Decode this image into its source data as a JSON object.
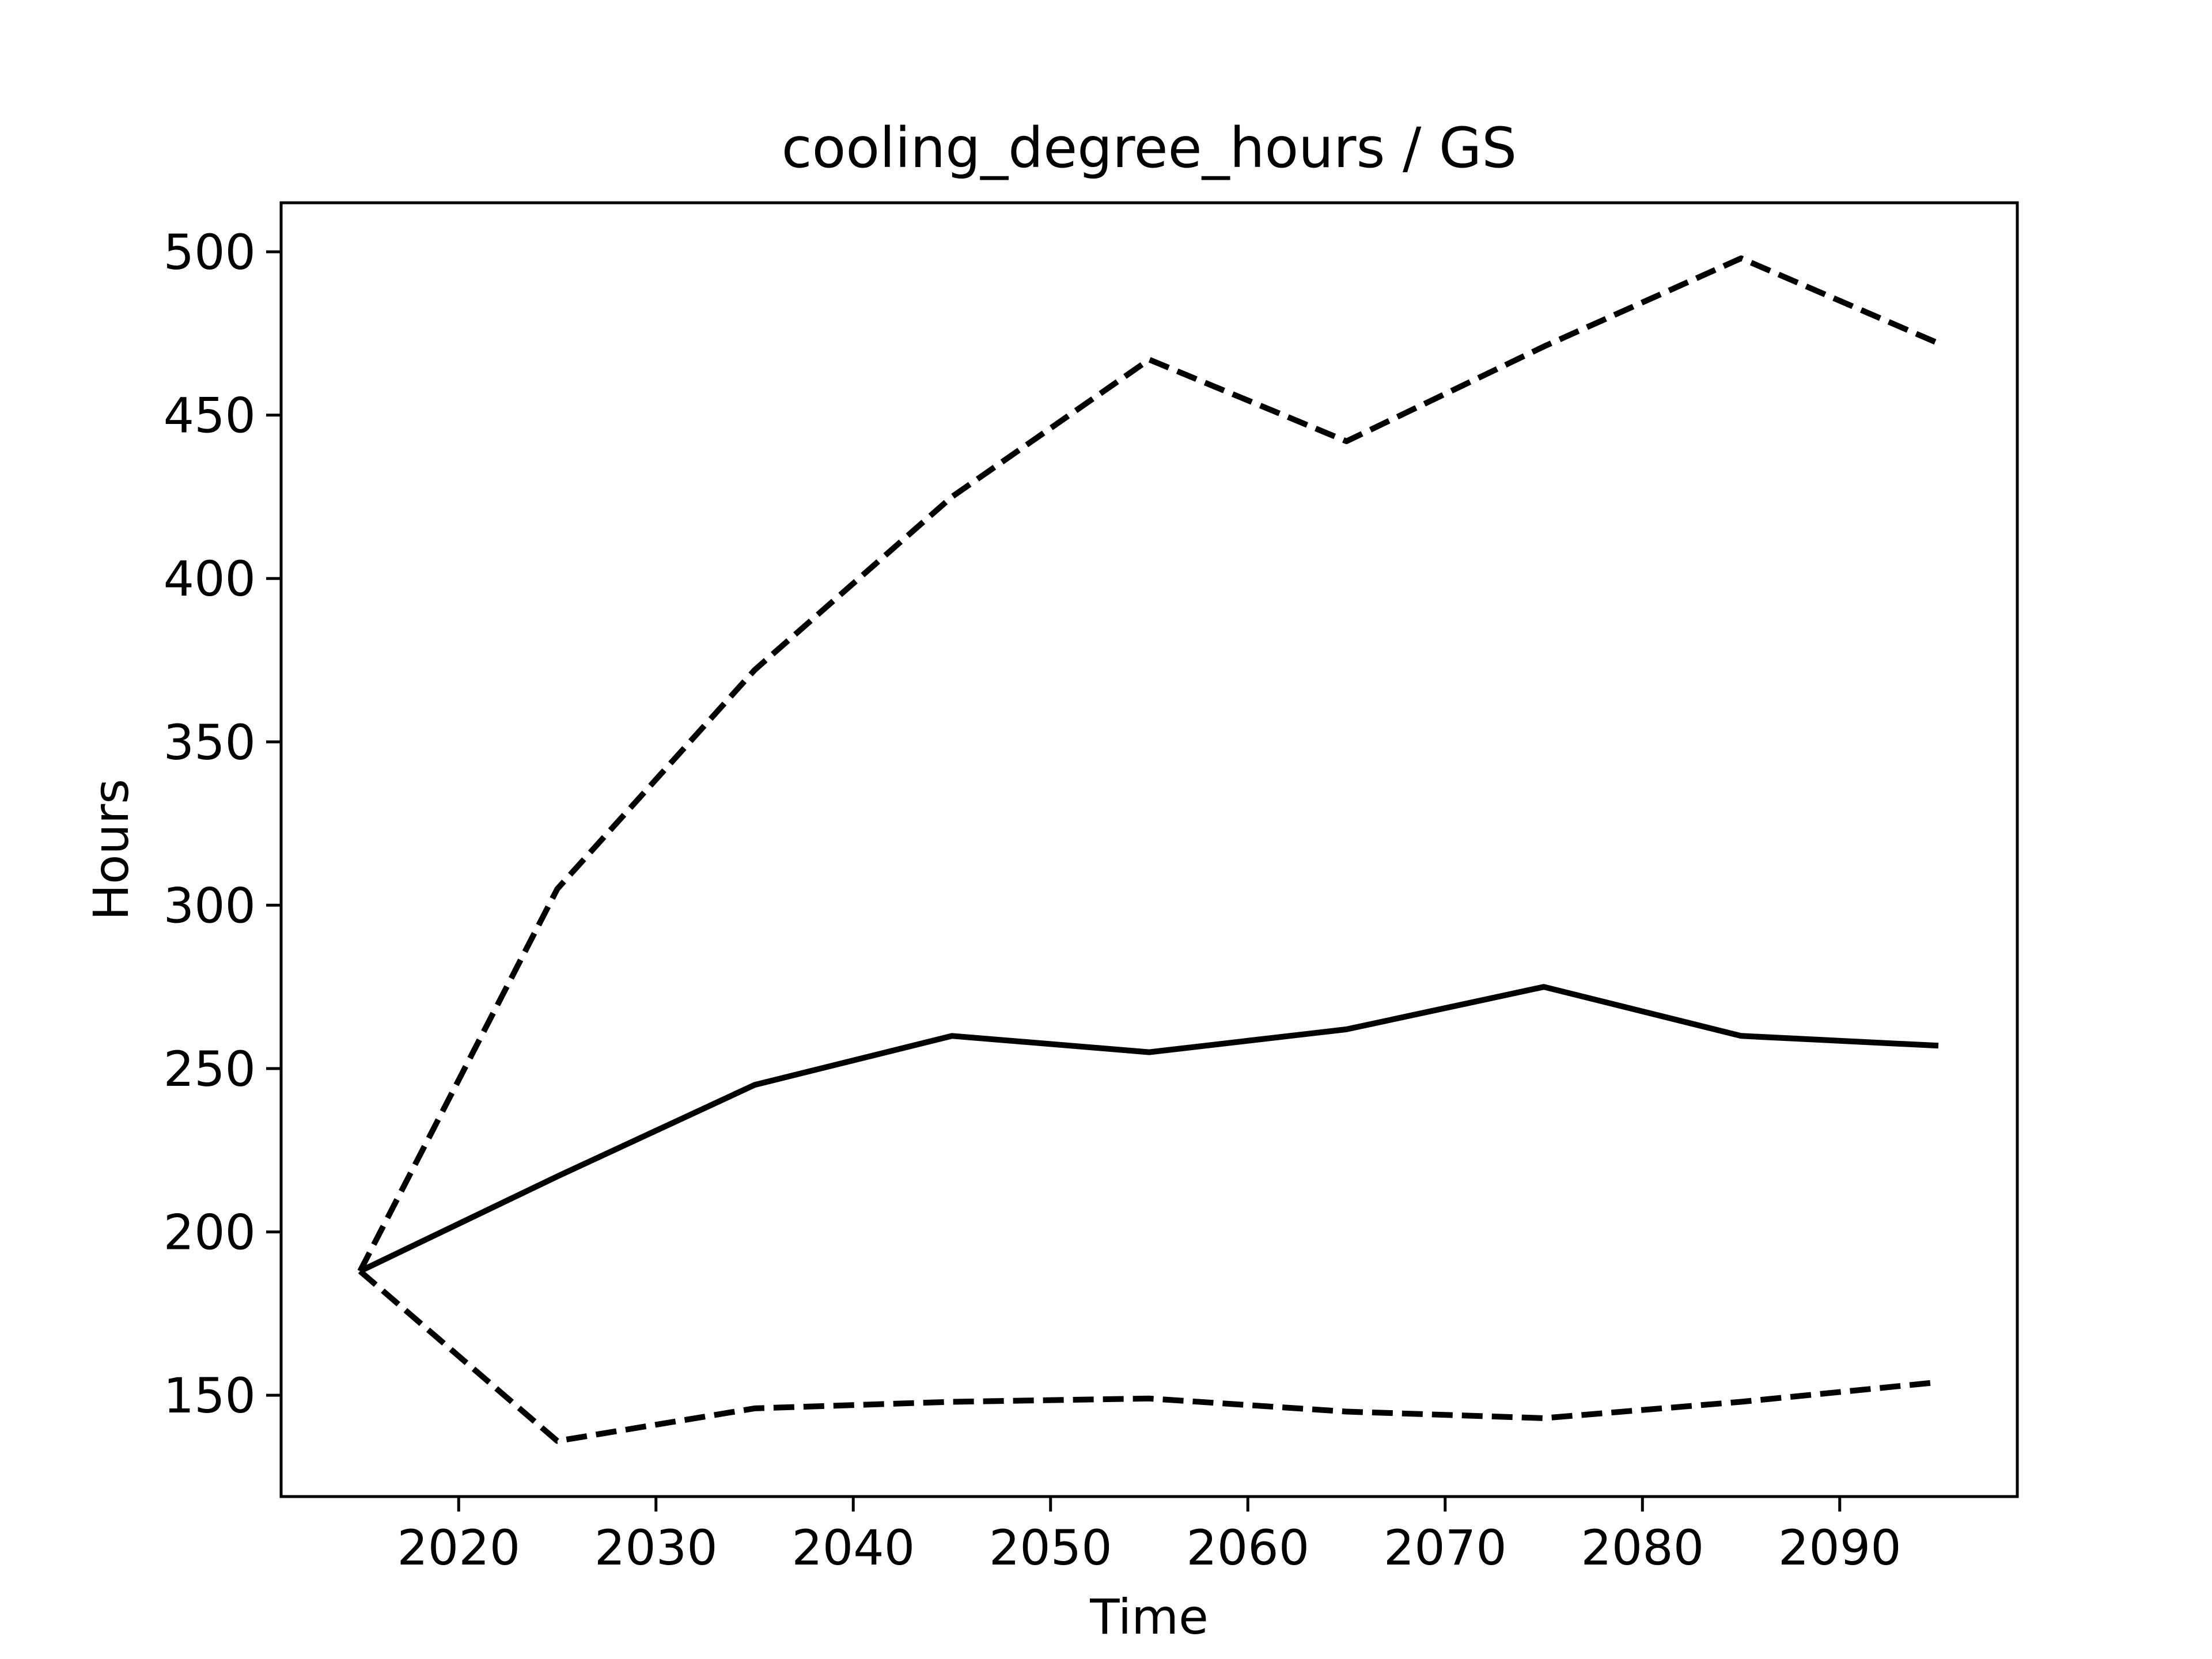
{
  "chart_data": {
    "type": "line",
    "title": "cooling_degree_hours / GS",
    "xlabel": "Time",
    "ylabel": "Hours",
    "xlim": [
      2011,
      2099
    ],
    "ylim": [
      119,
      515
    ],
    "xticks": [
      2020,
      2030,
      2040,
      2050,
      2060,
      2070,
      2080,
      2090
    ],
    "yticks": [
      150,
      200,
      250,
      300,
      350,
      400,
      450,
      500
    ],
    "grid": false,
    "x": [
      2015,
      2025,
      2035,
      2045,
      2055,
      2065,
      2075,
      2085,
      2095
    ],
    "series": [
      {
        "style": "solid",
        "color": "#000000",
        "values": [
          188,
          217,
          245,
          260,
          255,
          262,
          275,
          260,
          257
        ]
      },
      {
        "style": "dashed",
        "color": "#000000",
        "values": [
          188,
          305,
          372,
          425,
          467,
          442,
          471,
          498,
          472
        ]
      },
      {
        "style": "dashed",
        "color": "#000000",
        "values": [
          188,
          136,
          146,
          148,
          149,
          145,
          143,
          148,
          154
        ]
      }
    ]
  }
}
